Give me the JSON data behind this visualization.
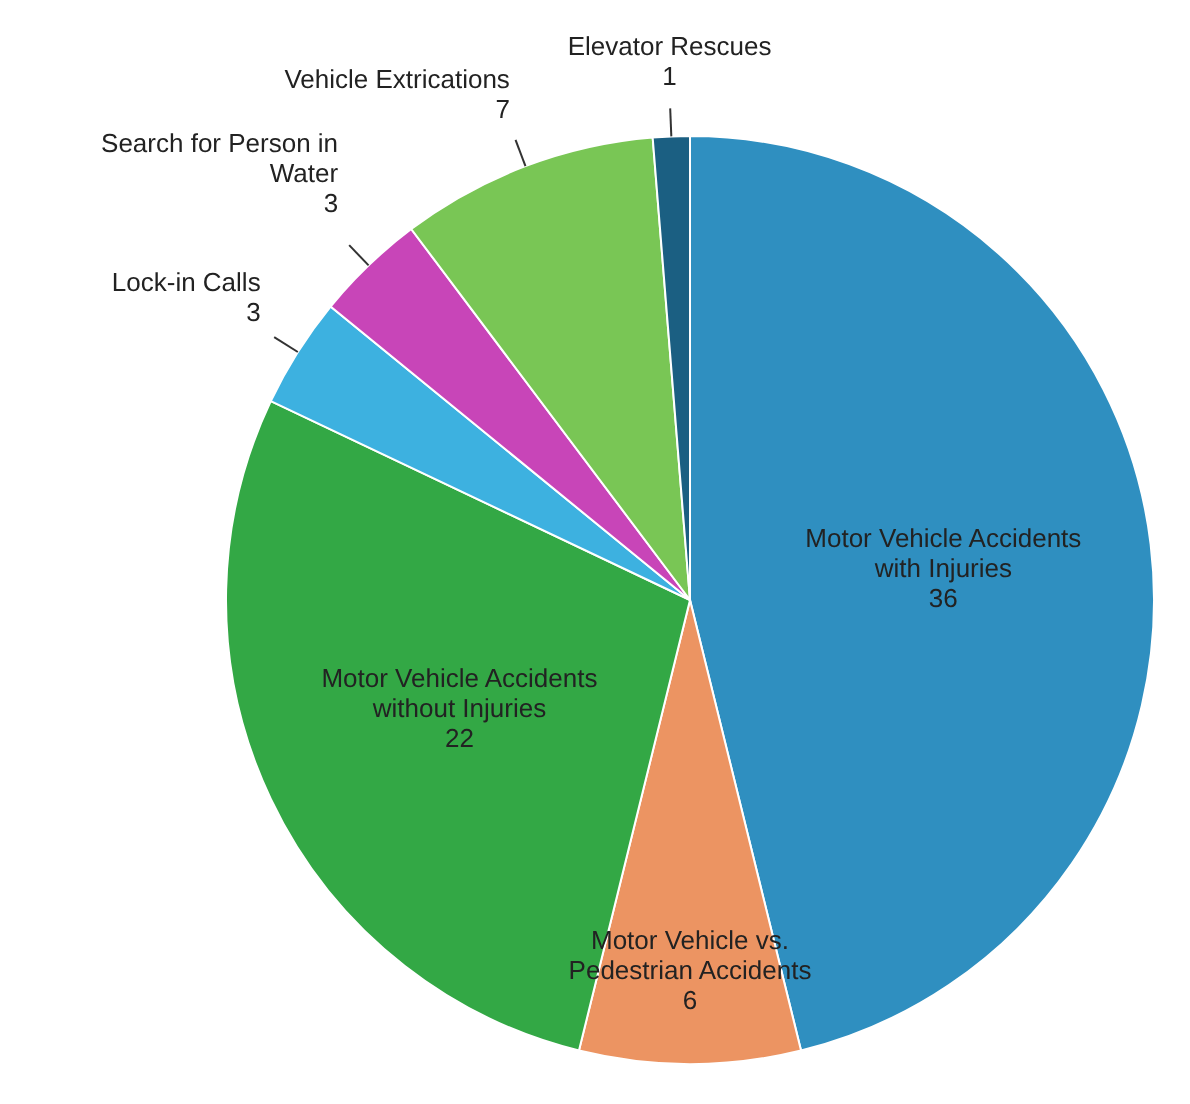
{
  "chart_data": {
    "type": "pie",
    "categories": [
      "Motor Vehicle Accidents with Injuries",
      "Motor Vehicle vs. Pedestrian Accidents",
      "Motor Vehicle Accidents without Injuries",
      "Lock-in Calls",
      "Search for Person in Water",
      "Vehicle Extrications",
      "Elevator Rescues"
    ],
    "values": [
      36,
      6,
      22,
      3,
      3,
      7,
      1
    ],
    "colors": [
      "#2f8fc0",
      "#ec9462",
      "#33a845",
      "#3db1e0",
      "#c845b8",
      "#79c655",
      "#1b5f82"
    ],
    "data_labels": true
  }
}
